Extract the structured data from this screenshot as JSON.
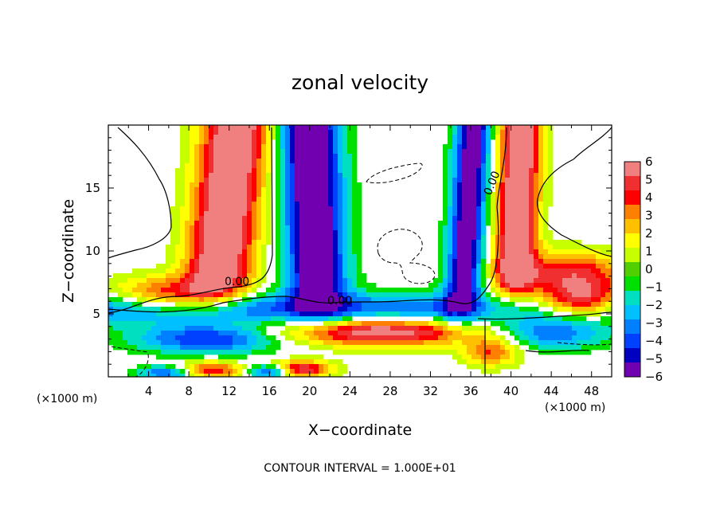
{
  "chart_data": {
    "type": "heatmap",
    "title": "zonal velocity",
    "xlabel": "X−coordinate",
    "ylabel": "Z−coordinate",
    "x_unit_left": "(×1000 m)",
    "x_unit_right": "(×1000 m)",
    "footer": "CONTOUR INTERVAL = 1.000E+01",
    "xlim": [
      0,
      50
    ],
    "ylim": [
      0,
      20
    ],
    "x_ticks": [
      "4",
      "8",
      "12",
      "16",
      "20",
      "24",
      "28",
      "32",
      "36",
      "40",
      "44",
      "48"
    ],
    "y_ticks": [
      "5",
      "10",
      "15"
    ],
    "contour_labels": [
      "0.00",
      "0.00",
      "0.00"
    ],
    "colorbar": {
      "levels": [
        "6",
        "5",
        "4",
        "3",
        "2",
        "1",
        "0",
        "−1",
        "−2",
        "−3",
        "−4",
        "−5",
        "−6"
      ],
      "colors": [
        "#f08080",
        "#f03030",
        "#ff0000",
        "#ff8000",
        "#ffc000",
        "#ffff00",
        "#c8ff00",
        "#50d000",
        "#00e000",
        "#00e0c0",
        "#00c0ff",
        "#0080ff",
        "#0040ff",
        "#0000c0",
        "#7000b0"
      ]
    }
  }
}
